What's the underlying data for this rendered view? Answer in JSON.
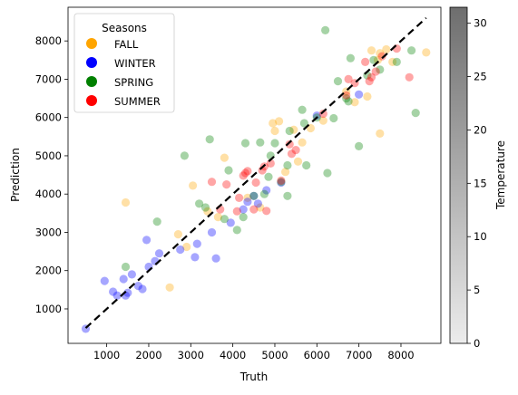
{
  "chart_data": {
    "type": "scatter",
    "xlabel": "Truth",
    "ylabel": "Prediction",
    "xlim": [
      80,
      8950
    ],
    "ylim": [
      100,
      8880
    ],
    "xticks": [
      1000,
      2000,
      3000,
      4000,
      5000,
      6000,
      7000,
      8000
    ],
    "yticks": [
      1000,
      2000,
      3000,
      4000,
      5000,
      6000,
      7000,
      8000
    ],
    "grid": false,
    "legend": {
      "title": "Seasons",
      "position": "top-left",
      "entries": [
        {
          "label": "FALL",
          "color": "#ffa500"
        },
        {
          "label": "WINTER",
          "color": "#0000ff"
        },
        {
          "label": "SPRING",
          "color": "#008000"
        },
        {
          "label": "SUMMER",
          "color": "#ff0000"
        }
      ]
    },
    "reference_line": {
      "style": "dashed",
      "color": "#000000",
      "x": [
        500,
        8600
      ],
      "y": [
        500,
        8600
      ]
    },
    "colorbar": {
      "label": "Temperature",
      "range": [
        0,
        31.5
      ],
      "ticks": [
        0,
        5,
        10,
        15,
        20,
        25,
        30
      ],
      "colors": [
        "#ececec",
        "#6e6e6e"
      ]
    },
    "series": [
      {
        "name": "FALL",
        "color": "#ffa500",
        "points": [
          [
            1450,
            3780
          ],
          [
            2500,
            1560
          ],
          [
            2700,
            2950
          ],
          [
            3050,
            4220
          ],
          [
            3400,
            3550
          ],
          [
            3800,
            4950
          ],
          [
            4350,
            3900
          ],
          [
            4950,
            5850
          ],
          [
            5000,
            5650
          ],
          [
            5100,
            5900
          ],
          [
            5250,
            4580
          ],
          [
            5450,
            5680
          ],
          [
            5650,
            5350
          ],
          [
            5850,
            5720
          ],
          [
            6150,
            5920
          ],
          [
            6700,
            6680
          ],
          [
            6900,
            6400
          ],
          [
            7300,
            7750
          ],
          [
            7450,
            7500
          ],
          [
            7500,
            7680
          ],
          [
            7500,
            5580
          ],
          [
            7650,
            7780
          ],
          [
            7800,
            7450
          ],
          [
            8600,
            7700
          ],
          [
            7200,
            6550
          ],
          [
            5550,
            4850
          ],
          [
            4650,
            3650
          ],
          [
            2900,
            2620
          ],
          [
            3650,
            3400
          ]
        ]
      },
      {
        "name": "WINTER",
        "color": "#0000ff",
        "points": [
          [
            500,
            480
          ],
          [
            950,
            1730
          ],
          [
            1150,
            1450
          ],
          [
            1250,
            1350
          ],
          [
            1400,
            1780
          ],
          [
            1500,
            1420
          ],
          [
            1600,
            1900
          ],
          [
            1850,
            1520
          ],
          [
            1950,
            2800
          ],
          [
            2000,
            2100
          ],
          [
            2150,
            2250
          ],
          [
            2250,
            2450
          ],
          [
            2750,
            2550
          ],
          [
            3100,
            2350
          ],
          [
            3150,
            2700
          ],
          [
            3500,
            3000
          ],
          [
            3600,
            2320
          ],
          [
            3950,
            3250
          ],
          [
            4250,
            3600
          ],
          [
            4350,
            3800
          ],
          [
            4600,
            3750
          ],
          [
            4800,
            4100
          ],
          [
            5150,
            4300
          ],
          [
            6000,
            6050
          ],
          [
            7000,
            6600
          ],
          [
            1750,
            1600
          ],
          [
            1450,
            1350
          ],
          [
            4500,
            3950
          ]
        ]
      },
      {
        "name": "SPRING",
        "color": "#008000",
        "points": [
          [
            1450,
            2100
          ],
          [
            2200,
            3280
          ],
          [
            2850,
            5000
          ],
          [
            3200,
            3750
          ],
          [
            3350,
            3650
          ],
          [
            3450,
            5430
          ],
          [
            3800,
            3350
          ],
          [
            3900,
            4620
          ],
          [
            4100,
            3060
          ],
          [
            4250,
            3400
          ],
          [
            4300,
            5330
          ],
          [
            4500,
            3950
          ],
          [
            4750,
            4000
          ],
          [
            4850,
            4450
          ],
          [
            4900,
            5000
          ],
          [
            5000,
            5330
          ],
          [
            5150,
            4320
          ],
          [
            5300,
            3950
          ],
          [
            5300,
            4750
          ],
          [
            5350,
            5650
          ],
          [
            5650,
            6200
          ],
          [
            5750,
            4750
          ],
          [
            6000,
            6000
          ],
          [
            6200,
            8280
          ],
          [
            6250,
            4550
          ],
          [
            6400,
            5980
          ],
          [
            6500,
            6950
          ],
          [
            6700,
            6500
          ],
          [
            6750,
            6420
          ],
          [
            6800,
            7550
          ],
          [
            7000,
            5250
          ],
          [
            7200,
            7100
          ],
          [
            7350,
            7500
          ],
          [
            7500,
            7250
          ],
          [
            7900,
            7450
          ],
          [
            8250,
            7750
          ],
          [
            8350,
            6120
          ],
          [
            4650,
            5350
          ],
          [
            5700,
            5850
          ]
        ]
      },
      {
        "name": "SUMMER",
        "color": "#ff0000",
        "points": [
          [
            3500,
            4320
          ],
          [
            3700,
            3600
          ],
          [
            3850,
            4250
          ],
          [
            4100,
            3550
          ],
          [
            4250,
            4480
          ],
          [
            4300,
            4550
          ],
          [
            4350,
            4600
          ],
          [
            4500,
            3600
          ],
          [
            4550,
            4300
          ],
          [
            4700,
            4620
          ],
          [
            4750,
            4720
          ],
          [
            4800,
            3560
          ],
          [
            4900,
            4800
          ],
          [
            5150,
            4350
          ],
          [
            5400,
            5050
          ],
          [
            5500,
            5150
          ],
          [
            6150,
            6100
          ],
          [
            6700,
            6580
          ],
          [
            6750,
            7000
          ],
          [
            6900,
            6900
          ],
          [
            7150,
            7450
          ],
          [
            7250,
            6950
          ],
          [
            7300,
            7050
          ],
          [
            7400,
            7200
          ],
          [
            7550,
            7600
          ],
          [
            7900,
            7800
          ],
          [
            8200,
            7050
          ],
          [
            4150,
            3900
          ],
          [
            5350,
            5300
          ]
        ]
      }
    ]
  }
}
